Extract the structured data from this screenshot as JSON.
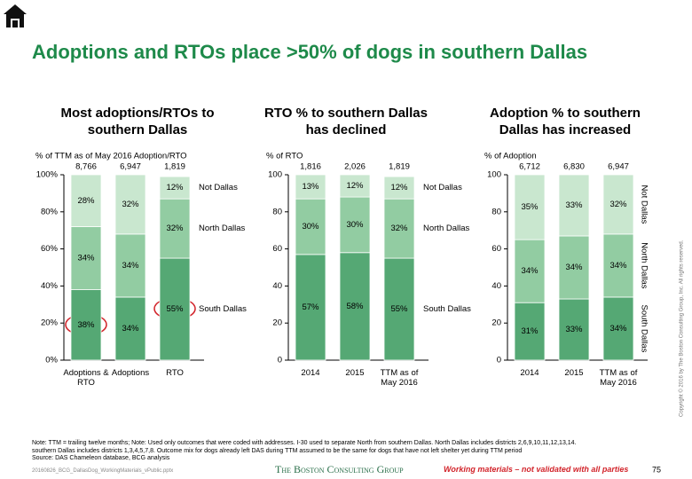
{
  "header": {
    "title": "Adoptions and RTOs place >50% of dogs in southern Dallas"
  },
  "chart_data": [
    {
      "type": "stacked-bar",
      "title": "Most adoptions/RTOs to southern Dallas",
      "y_label": "% of TTM as of May 2016 Adoption/RTO",
      "categories": [
        "Adoptions & RTO",
        "Adoptions",
        "RTO"
      ],
      "totals": {
        "values": [
          8766,
          6947,
          1819
        ],
        "value_labels": [
          "8,766",
          "6,947",
          "1,819"
        ]
      },
      "series": [
        {
          "name": "South Dallas",
          "color": "#55a874",
          "values": [
            38,
            34,
            55
          ],
          "value_labels": [
            "38%",
            "34%",
            "55%"
          ]
        },
        {
          "name": "North Dallas",
          "color": "#92cca2",
          "values": [
            34,
            34,
            32
          ],
          "value_labels": [
            "34%",
            "34%",
            "32%"
          ]
        },
        {
          "name": "Not Dallas",
          "color": "#c9e7cf",
          "values": [
            28,
            32,
            12
          ],
          "value_labels": [
            "28%",
            "32%",
            "12%"
          ]
        }
      ],
      "ylim": [
        0,
        100
      ],
      "yticks": [
        {
          "value": 0,
          "label": "0%"
        },
        {
          "value": 20,
          "label": "20%"
        },
        {
          "value": 40,
          "label": "40%"
        },
        {
          "value": 60,
          "label": "60%"
        },
        {
          "value": 80,
          "label": "80%"
        },
        {
          "value": 100,
          "label": "100%"
        }
      ],
      "legend": "right"
    },
    {
      "type": "stacked-bar",
      "title": "RTO % to southern Dallas has declined",
      "y_label": "% of RTO",
      "categories": [
        "2014",
        "2015",
        "TTM as of May 2016"
      ],
      "totals": {
        "values": [
          1816,
          2026,
          1819
        ],
        "value_labels": [
          "1,816",
          "2,026",
          "1,819"
        ]
      },
      "series": [
        {
          "name": "South Dallas",
          "color": "#55a874",
          "values": [
            57,
            58,
            55
          ],
          "value_labels": [
            "57%",
            "58%",
            "55%"
          ]
        },
        {
          "name": "North Dallas",
          "color": "#92cca2",
          "values": [
            30,
            30,
            32
          ],
          "value_labels": [
            "30%",
            "30%",
            "32%"
          ]
        },
        {
          "name": "Not Dallas",
          "color": "#c9e7cf",
          "values": [
            13,
            12,
            12
          ],
          "value_labels": [
            "13%",
            "12%",
            "12%"
          ]
        }
      ],
      "ylim": [
        0,
        100
      ],
      "yticks": [
        0,
        20,
        40,
        60,
        80,
        100
      ],
      "legend": "right"
    },
    {
      "type": "stacked-bar",
      "title": "Adoption % to southern Dallas has increased",
      "y_label": "% of Adoption",
      "categories": [
        "2014",
        "2015",
        "TTM as of May 2016"
      ],
      "totals": {
        "values": [
          6712,
          6830,
          6947
        ],
        "value_labels": [
          "6,712",
          "6,830",
          "6,947"
        ]
      },
      "series": [
        {
          "name": "South Dallas",
          "color": "#55a874",
          "values": [
            31,
            33,
            34
          ],
          "value_labels": [
            "31%",
            "33%",
            "34%"
          ]
        },
        {
          "name": "North Dallas",
          "color": "#92cca2",
          "values": [
            34,
            34,
            34
          ],
          "value_labels": [
            "34%",
            "34%",
            "34%"
          ]
        },
        {
          "name": "Not Dallas",
          "color": "#c9e7cf",
          "values": [
            35,
            33,
            32
          ],
          "value_labels": [
            "35%",
            "33%",
            "32%"
          ]
        }
      ],
      "ylim": [
        0,
        100
      ],
      "yticks": [
        0,
        20,
        40,
        60,
        80,
        100
      ],
      "legend": "right-vertical"
    }
  ],
  "notes": [
    "Note: TTM = trailing twelve months; Note: Used only outcomes that were coded with addresses. I-30 used to separate North from southern Dallas. North Dallas includes districts 2,6,9,10,11,12,13,14.",
    "southern Dallas includes districts 1,3,4,5,7,8. Outcome mix for dogs already left DAS during TTM assumed to be the same for dogs that have not left shelter yet during TTM period",
    "Source: DAS Chameleon database, BCG analysis"
  ],
  "footer": {
    "file": "20160826_BCG_DallasDog_WorkingMaterials_vPublic.pptx",
    "logo": "The Boston Consulting Group",
    "warning": "Working materials – not validated with all parties",
    "page": "75",
    "copyright": "Copyright © 2016 by The Boston Consulting Group, Inc. All rights reserved."
  }
}
